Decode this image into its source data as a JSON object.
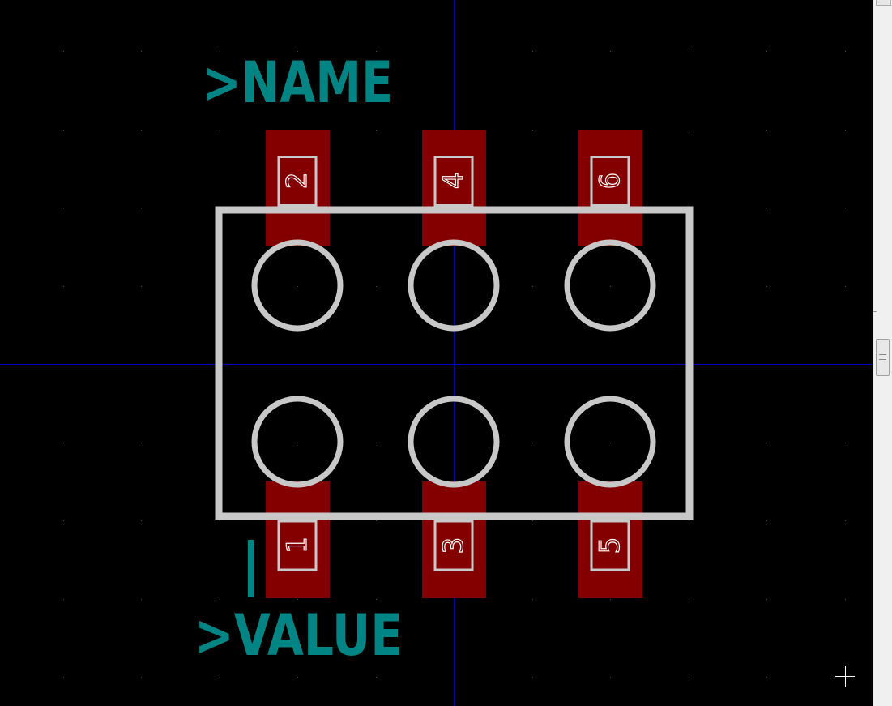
{
  "footprint": {
    "name_field": ">NAME",
    "value_field": ">VALUE",
    "pin1_marker": "|",
    "pads_top": [
      "2",
      "4",
      "6"
    ],
    "pads_bottom": [
      "1",
      "3",
      "5"
    ]
  },
  "colors": {
    "background": "#000000",
    "pad": "#840000",
    "silkscreen": "#c8c8c8",
    "fab_text": "#008484",
    "axis": "#0000c0",
    "grid_dot": "#4a4a4a",
    "pad_number": "#ffffff"
  },
  "icons": {
    "cursor": "crosshair-cursor-icon"
  }
}
